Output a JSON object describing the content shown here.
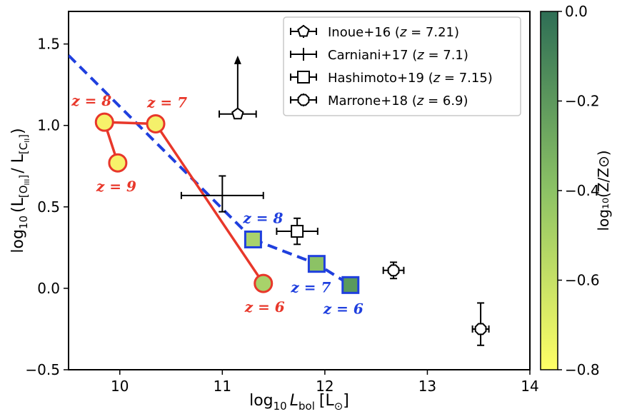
{
  "chart_data": {
    "type": "scatter",
    "xlim": [
      9.5,
      14
    ],
    "ylim": [
      -0.5,
      1.7
    ],
    "x_ticks": [
      10,
      11,
      12,
      13,
      14
    ],
    "y_ticks": [
      -0.5,
      0.0,
      0.5,
      1.0,
      1.5
    ],
    "x_tick_labels": [
      "10",
      "11",
      "12",
      "13",
      "14"
    ],
    "y_tick_labels": [
      "−0.5",
      "0.0",
      "0.5",
      "1.0",
      "1.5"
    ],
    "xlabel": {
      "prefix": "log",
      "sub1": "10",
      "var": "L",
      "sub2": "bol",
      "unit": "[L",
      "unit_sub": "⊙",
      "unit_close": "]"
    },
    "ylabel": {
      "prefix": "log",
      "sub1": "10",
      "open": "(L",
      "sub_a": "[O",
      "sub_a_roman": "III",
      "mid": "/ L",
      "sub_b": "[C",
      "sub_b_roman": "II",
      "close": ")"
    },
    "colorbar": {
      "label": "log₁₀(Z/Z⊙)",
      "range": [
        -0.8,
        0.0
      ],
      "ticks": [
        0.0,
        -0.2,
        -0.4,
        -0.6,
        -0.8
      ],
      "tick_labels": [
        "0.0",
        "−0.2",
        "−0.4",
        "−0.6",
        "−0.8"
      ],
      "colors": [
        "#ffff66",
        "#8cc265",
        "#2e6e55"
      ]
    },
    "model_red": {
      "line_color": "#e8372a",
      "points": [
        {
          "x": 9.98,
          "y": 0.77,
          "z": 9,
          "color": "#f7f26a",
          "label": "z = 9",
          "label_pos": "below"
        },
        {
          "x": 9.85,
          "y": 1.02,
          "z": 8,
          "color": "#f7f26a",
          "label": "z = 8",
          "label_pos": "above"
        },
        {
          "x": 10.35,
          "y": 1.01,
          "z": 7,
          "color": "#f4f06b",
          "label": "z = 7",
          "label_pos": "above"
        },
        {
          "x": 11.4,
          "y": 0.03,
          "z": 6,
          "color": "#a8d26a",
          "label": "z = 6",
          "label_pos": "below"
        }
      ]
    },
    "model_blue": {
      "line_color": "#1f3fde",
      "fit_line": {
        "x": [
          9.5,
          11.3
        ],
        "y": [
          1.43,
          0.3
        ]
      },
      "points": [
        {
          "x": 11.3,
          "y": 0.3,
          "z": 8,
          "color": "#a9d26b",
          "label": "z = 8",
          "label_pos": "above"
        },
        {
          "x": 11.92,
          "y": 0.15,
          "z": 7,
          "color": "#8cc265",
          "label": "z = 7",
          "label_pos": "below"
        },
        {
          "x": 12.25,
          "y": 0.02,
          "z": 6,
          "color": "#5a9a5c",
          "label": "z = 6",
          "label_pos": "below"
        }
      ]
    },
    "observations": [
      {
        "name": "Inoue+16",
        "z_text": "7.21",
        "marker": "pentagon",
        "x": 11.15,
        "y": 1.07,
        "xerr": 0.18,
        "yerr_low": 0.0,
        "yerr_high": 0.0,
        "lower_limit": true,
        "arrow_to": 1.42
      },
      {
        "name": "Carniani+17",
        "z_text": "7.1",
        "marker": "plus",
        "x": 11.0,
        "y": 0.57,
        "xerr": 0.4,
        "yerr_low": 0.1,
        "yerr_high": 0.12,
        "lower_limit": false
      },
      {
        "name": "Hashimoto+19",
        "z_text": "7.15",
        "marker": "square",
        "x": 11.73,
        "y": 0.35,
        "xerr": 0.2,
        "yerr_low": 0.08,
        "yerr_high": 0.08,
        "lower_limit": false
      },
      {
        "name": "Marrone+18",
        "z_text": "6.9",
        "marker": "octagon",
        "x": 12.67,
        "y": 0.11,
        "xerr": 0.1,
        "yerr_low": 0.05,
        "yerr_high": 0.05,
        "lower_limit": false
      },
      {
        "name": "",
        "z_text": "",
        "marker": "octagon",
        "x": 13.52,
        "y": -0.25,
        "xerr": 0.08,
        "yerr_low": 0.1,
        "yerr_high": 0.16,
        "lower_limit": false
      }
    ],
    "legend": {
      "placement": "top-right",
      "entries": [
        {
          "marker": "pentagon",
          "name": "Inoue+16",
          "open": " (",
          "zvar": "z",
          "eq": " = 7.21)"
        },
        {
          "marker": "plus",
          "name": "Carniani+17",
          "open": " (",
          "zvar": "z",
          "eq": " = 7.1)"
        },
        {
          "marker": "square",
          "name": "Hashimoto+19",
          "open": " (",
          "zvar": "z",
          "eq": " = 7.15)"
        },
        {
          "marker": "octagon",
          "name": "Marrone+18",
          "open": " (",
          "zvar": "z",
          "eq": " = 6.9)"
        }
      ]
    }
  }
}
